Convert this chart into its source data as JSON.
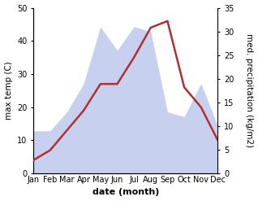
{
  "months": [
    "Jan",
    "Feb",
    "Mar",
    "Apr",
    "May",
    "Jun",
    "Jul",
    "Aug",
    "Sep",
    "Oct",
    "Nov",
    "Dec"
  ],
  "temperature": [
    4,
    7,
    13,
    19,
    27,
    27,
    35,
    44,
    46,
    26,
    20,
    10
  ],
  "precipitation": [
    9,
    9,
    13,
    19,
    31,
    26,
    31,
    30,
    13,
    12,
    19,
    10
  ],
  "temp_color": "#b03030",
  "precip_fill_color": "#c8d0f0",
  "precip_edge_color": "#c8d0f0",
  "background_color": "#ffffff",
  "xlabel": "date (month)",
  "ylabel_left": "max temp (C)",
  "ylabel_right": "med. precipitation (kg/m2)",
  "ylim_left": [
    0,
    50
  ],
  "ylim_right": [
    0,
    35
  ],
  "yticks_left": [
    0,
    10,
    20,
    30,
    40,
    50
  ],
  "yticks_right": [
    0,
    5,
    10,
    15,
    20,
    25,
    30,
    35
  ],
  "linewidth": 1.8,
  "label_fontsize": 7.5,
  "tick_fontsize": 7
}
